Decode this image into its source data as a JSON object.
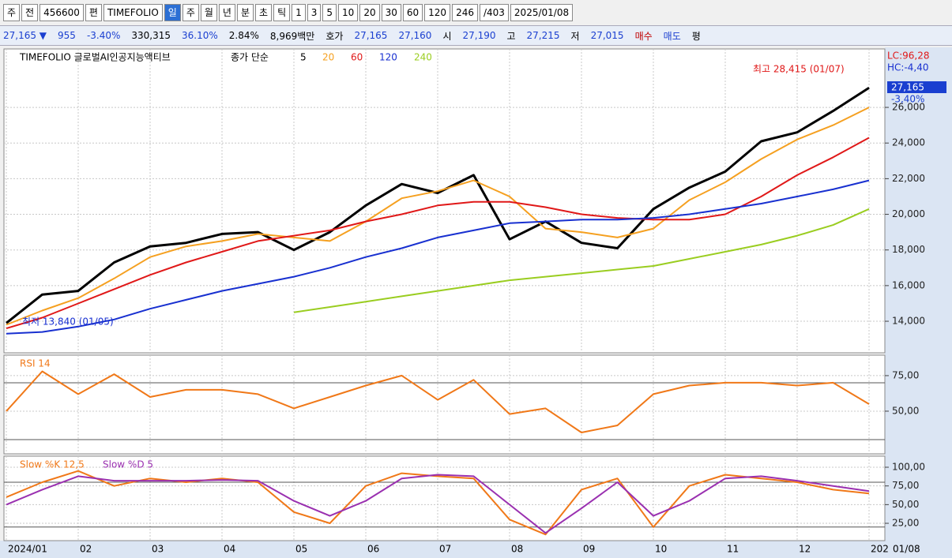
{
  "toolbar": {
    "items": [
      "주",
      "전",
      "456600",
      "편",
      "TIMEFOLIO",
      "일",
      "주",
      "월",
      "년",
      "분",
      "초",
      "틱",
      "1",
      "3",
      "5",
      "10",
      "20",
      "30",
      "60",
      "120",
      "246",
      "/403",
      "2025/01/08"
    ],
    "active": 5
  },
  "info_bar": {
    "items": [
      {
        "text": "27,165 ▼",
        "color": "#1a3fd0"
      },
      {
        "text": "955",
        "color": "#1a3fd0"
      },
      {
        "text": "-3.40%",
        "color": "#1a3fd0"
      },
      {
        "text": "330,315",
        "color": "#000"
      },
      {
        "text": "36.10%",
        "color": "#1a3fd0"
      },
      {
        "text": "2.84%",
        "color": "#000"
      },
      {
        "text": "8,969백만",
        "color": "#000"
      },
      {
        "text": "호가",
        "color": "#000"
      },
      {
        "text": "27,165",
        "color": "#1a3fd0"
      },
      {
        "text": "27,160",
        "color": "#1a3fd0"
      },
      {
        "text": "시",
        "color": "#000"
      },
      {
        "text": "27,190",
        "color": "#1a3fd0"
      },
      {
        "text": "고",
        "color": "#000"
      },
      {
        "text": "27,215",
        "color": "#1a3fd0"
      },
      {
        "text": "저",
        "color": "#000"
      },
      {
        "text": "27,015",
        "color": "#1a3fd0"
      },
      {
        "text": "매수",
        "color": "#c00000"
      },
      {
        "text": "매도",
        "color": "#1a3fd0"
      },
      {
        "text": "평",
        "color": "#000"
      }
    ]
  },
  "chart_data": [
    {
      "type": "line",
      "title": "TIMEFOLIO 글로벌AI인공지능액티브",
      "legend_label": "종가 단순",
      "categories": [
        "2024/01",
        null,
        "02",
        null,
        "03",
        null,
        "04",
        null,
        "05",
        null,
        "06",
        null,
        "07",
        null,
        "08",
        null,
        "09",
        null,
        "10",
        null,
        "11",
        null,
        "12",
        null,
        "202"
      ],
      "x_end_label": "01/08",
      "series": [
        {
          "name": "5",
          "color": "#000000",
          "values": [
            13900,
            15500,
            15700,
            17300,
            18200,
            18400,
            18900,
            19000,
            18000,
            19000,
            20500,
            21700,
            21200,
            22200,
            18600,
            19600,
            18400,
            18100,
            20300,
            21500,
            22400,
            24100,
            24600,
            25800,
            27100
          ]
        },
        {
          "name": "20",
          "color": "#f5a020",
          "values": [
            13800,
            14600,
            15300,
            16400,
            17600,
            18200,
            18500,
            18900,
            18700,
            18500,
            19600,
            20900,
            21300,
            21900,
            21000,
            19200,
            19000,
            18700,
            19200,
            20800,
            21800,
            23100,
            24200,
            25000,
            26000
          ]
        },
        {
          "name": "60",
          "color": "#e01818",
          "values": [
            13600,
            14200,
            15000,
            15800,
            16600,
            17300,
            17900,
            18500,
            18800,
            19100,
            19600,
            20000,
            20500,
            20700,
            20700,
            20400,
            20000,
            19800,
            19700,
            19700,
            20000,
            21000,
            22200,
            23200,
            24300
          ]
        },
        {
          "name": "120",
          "color": "#1830d0",
          "values": [
            13300,
            13400,
            13700,
            14100,
            14700,
            15200,
            15700,
            16100,
            16500,
            17000,
            17600,
            18100,
            18700,
            19100,
            19500,
            19600,
            19700,
            19700,
            19800,
            20000,
            20300,
            20600,
            21000,
            21400,
            21900
          ]
        },
        {
          "name": "240",
          "color": "#9acd20",
          "values": [
            null,
            null,
            null,
            null,
            null,
            null,
            null,
            null,
            14500,
            14800,
            15100,
            15400,
            15700,
            16000,
            16300,
            16500,
            16700,
            16900,
            17100,
            17500,
            17900,
            18300,
            18800,
            19400,
            20300
          ]
        }
      ],
      "ylim": [
        12230,
        29280
      ],
      "yticks": [
        {
          "value": 14000,
          "label": "14,000"
        },
        {
          "value": 16000,
          "label": "16,000"
        },
        {
          "value": 18000,
          "label": "18,000"
        },
        {
          "value": 20000,
          "label": "20,000"
        },
        {
          "value": 22000,
          "label": "22,000"
        },
        {
          "value": 24000,
          "label": "24,000"
        },
        {
          "value": 26000,
          "label": "26,000"
        }
      ],
      "annotations": {
        "high": "최고 28,415 (01/07)",
        "low": "최저 13,840 (01/05)",
        "lc": "LC:96,28",
        "hc": "HC:-4,40",
        "price": "27,165",
        "change": "-3,40%"
      },
      "grid": true
    },
    {
      "type": "line",
      "title": "RSI 14",
      "series": [
        {
          "name": "RSI",
          "color": "#f07818",
          "values": [
            50,
            78,
            62,
            76,
            60,
            65,
            65,
            62,
            52,
            60,
            68,
            75,
            58,
            72,
            48,
            52,
            35,
            40,
            62,
            68,
            70,
            70,
            68,
            70,
            55
          ]
        }
      ],
      "ylim": [
        20,
        89.4
      ],
      "yticks": [
        {
          "value": 50,
          "label": "50,00"
        },
        {
          "value": 75,
          "label": "75,00"
        }
      ],
      "reference_lines": [
        30,
        70
      ]
    },
    {
      "type": "line",
      "title": "Slow %K 12,5",
      "series": [
        {
          "name": "Slow %K 12,5",
          "color": "#f07818",
          "values": [
            60,
            80,
            95,
            75,
            85,
            80,
            85,
            80,
            40,
            25,
            75,
            92,
            88,
            85,
            30,
            10,
            70,
            85,
            20,
            75,
            90,
            85,
            80,
            70,
            65
          ]
        },
        {
          "name": "Slow %D 5",
          "color": "#9a30b0",
          "values": [
            50,
            70,
            88,
            82,
            82,
            82,
            83,
            82,
            55,
            35,
            55,
            85,
            90,
            88,
            50,
            12,
            45,
            80,
            35,
            55,
            85,
            88,
            82,
            75,
            68
          ]
        }
      ],
      "ylim": [
        1.8,
        114.8
      ],
      "yticks": [
        {
          "value": 25,
          "label": "25,00"
        },
        {
          "value": 50,
          "label": "50,00"
        },
        {
          "value": 75,
          "label": "75,00"
        },
        {
          "value": 100,
          "label": "100,00"
        }
      ],
      "reference_lines": [
        20,
        80
      ]
    }
  ]
}
